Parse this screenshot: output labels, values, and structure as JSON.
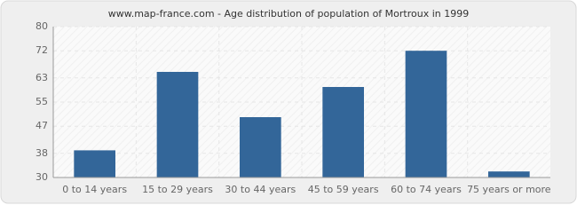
{
  "chart_data": {
    "type": "bar",
    "title": "www.map-france.com - Age distribution of population of Mortroux in 1999",
    "categories": [
      "0 to 14 years",
      "15 to 29 years",
      "30 to 44 years",
      "45 to 59 years",
      "60 to 74 years",
      "75 years or more"
    ],
    "values": [
      39,
      65,
      50,
      60,
      72,
      32
    ],
    "color": "#336699",
    "ylim": [
      30,
      80
    ],
    "yticks": [
      30,
      38,
      47,
      55,
      63,
      72,
      80
    ],
    "grid": true
  }
}
